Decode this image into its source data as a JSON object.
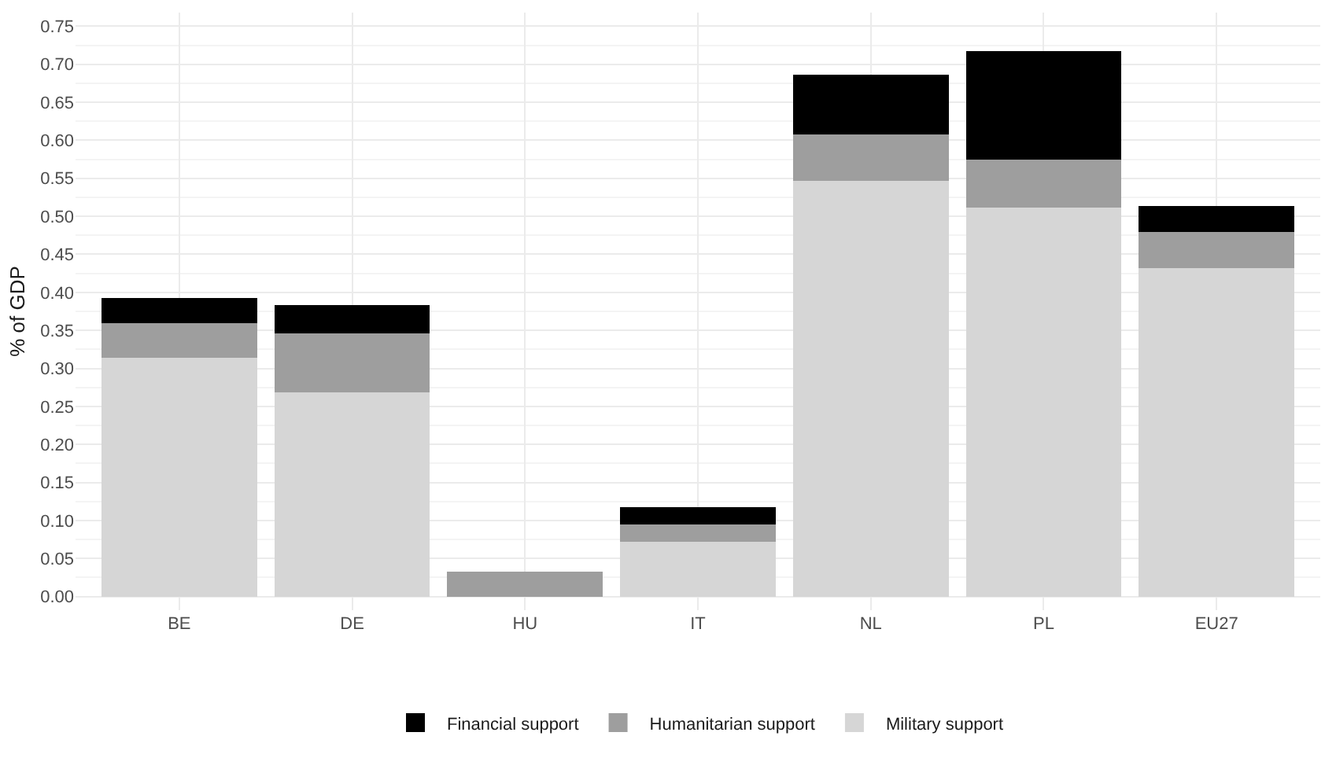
{
  "chart_data": {
    "type": "bar",
    "stacked": true,
    "ylabel": "% of GDP",
    "categories": [
      "BE",
      "DE",
      "HU",
      "IT",
      "NL",
      "PL",
      "EU27"
    ],
    "series": [
      {
        "name": "Military support",
        "color": "#d6d6d6",
        "values": [
          0.314,
          0.269,
          0,
          0.072,
          0.547,
          0.512,
          0.432
        ]
      },
      {
        "name": "Humanitarian support",
        "color": "#9e9e9e",
        "values": [
          0.045,
          0.077,
          0.033,
          0.023,
          0.061,
          0.063,
          0.047
        ]
      },
      {
        "name": "Financial support",
        "color": "#000000",
        "values": [
          0.034,
          0.037,
          0,
          0.022,
          0.078,
          0.142,
          0.035
        ]
      }
    ],
    "ylim": [
      -0.018,
      0.768
    ],
    "yticks": [
      {
        "value": 0,
        "label": "0.00"
      },
      0.05,
      {
        "value": 0.1,
        "label": "0.10"
      },
      0.15,
      {
        "value": 0.2,
        "label": "0.20"
      },
      0.25,
      {
        "value": 0.3,
        "label": "0.30"
      },
      0.35,
      {
        "value": 0.4,
        "label": "0.40"
      },
      0.45,
      {
        "value": 0.5,
        "label": "0.50"
      },
      0.55,
      {
        "value": 0.6,
        "label": "0.60"
      },
      0.65,
      {
        "value": 0.7,
        "label": "0.70"
      },
      0.75
    ],
    "grid": true,
    "legend": "bottom"
  }
}
